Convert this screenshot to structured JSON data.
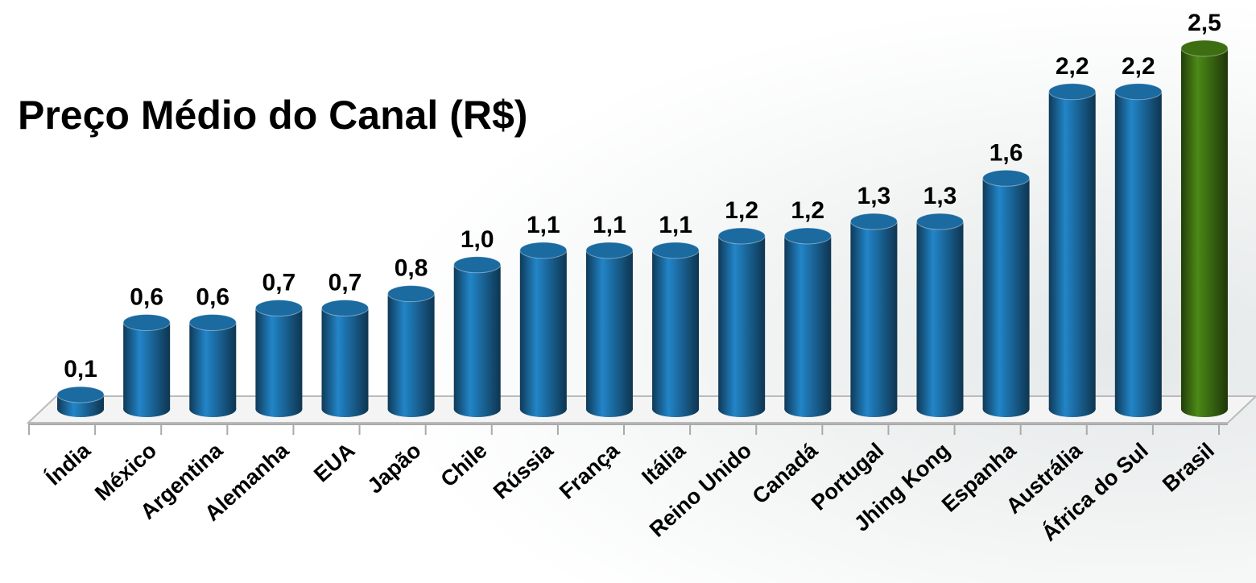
{
  "chart_data": {
    "type": "bar",
    "title": "Preço Médio do Canal (R$)",
    "categories": [
      "Índia",
      "México",
      "Argentina",
      "Alemanha",
      "EUA",
      "Japão",
      "Chile",
      "Rússia",
      "França",
      "Itália",
      "Reino Unido",
      "Canadá",
      "Portugal",
      "Jhing Kong",
      "Espanha",
      "Austrália",
      "África do Sul",
      "Brasil"
    ],
    "values": [
      0.1,
      0.6,
      0.6,
      0.7,
      0.7,
      0.8,
      1.0,
      1.1,
      1.1,
      1.1,
      1.2,
      1.2,
      1.3,
      1.3,
      1.6,
      2.2,
      2.2,
      2.5
    ],
    "value_labels": [
      "0,1",
      "0,6",
      "0,6",
      "0,7",
      "0,7",
      "0,8",
      "1,0",
      "1,1",
      "1,1",
      "1,1",
      "1,2",
      "1,2",
      "1,3",
      "1,3",
      "1,6",
      "2,2",
      "2,2",
      "2,5"
    ],
    "colors": [
      "#1b6aa0",
      "#1b6aa0",
      "#1b6aa0",
      "#1b6aa0",
      "#1b6aa0",
      "#1b6aa0",
      "#1b6aa0",
      "#1b6aa0",
      "#1b6aa0",
      "#1b6aa0",
      "#1b6aa0",
      "#1b6aa0",
      "#1b6aa0",
      "#1b6aa0",
      "#1b6aa0",
      "#1b6aa0",
      "#1b6aa0",
      "#3d6e12"
    ]
  }
}
